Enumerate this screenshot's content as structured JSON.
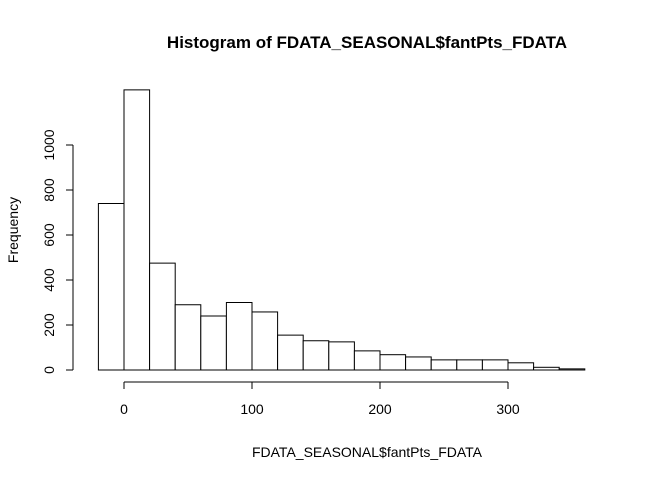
{
  "chart_data": {
    "type": "bar",
    "title": "Histogram of FDATA_SEASONAL$fantPts_FDATA",
    "xlabel": "FDATA_SEASONAL$fantPts_FDATA",
    "ylabel": "Frequency",
    "bin_edges": [
      -20,
      0,
      20,
      40,
      60,
      80,
      100,
      120,
      140,
      160,
      180,
      200,
      220,
      240,
      260,
      280,
      300,
      320,
      340,
      360
    ],
    "values": [
      740,
      1245,
      475,
      290,
      240,
      300,
      258,
      155,
      130,
      125,
      85,
      68,
      58,
      45,
      45,
      45,
      32,
      12,
      5
    ],
    "xticks": [
      0,
      100,
      200,
      300
    ],
    "xtick_labels": [
      "0",
      "100",
      "200",
      "300"
    ],
    "yticks": [
      0,
      200,
      400,
      600,
      800,
      1000
    ],
    "ytick_labels": [
      "0",
      "200",
      "400",
      "600",
      "800",
      "1000"
    ],
    "xlim": [
      -20,
      380
    ],
    "ylim": [
      0,
      1245
    ],
    "grid": false,
    "legend": "none"
  }
}
